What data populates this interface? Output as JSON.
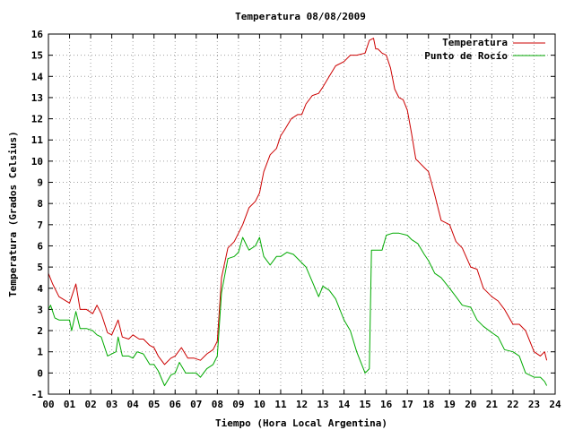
{
  "chart_data": {
    "type": "line",
    "title": "Temperatura 08/08/2009",
    "xlabel": "Tiempo (Hora Local Argentina)",
    "ylabel": "Temperatura (Grados Celsius)",
    "xlim": [
      0,
      24
    ],
    "ylim": [
      -1,
      16
    ],
    "x_ticks": [
      "00",
      "01",
      "02",
      "03",
      "04",
      "05",
      "06",
      "07",
      "08",
      "09",
      "10",
      "11",
      "12",
      "13",
      "14",
      "15",
      "16",
      "17",
      "18",
      "19",
      "20",
      "21",
      "22",
      "23",
      "24"
    ],
    "y_ticks": [
      "-1",
      "0",
      "1",
      "2",
      "3",
      "4",
      "5",
      "6",
      "7",
      "8",
      "9",
      "10",
      "11",
      "12",
      "13",
      "14",
      "15",
      "16"
    ],
    "grid": true,
    "legend_position": "top-right",
    "series": [
      {
        "name": "Temperatura",
        "color": "#cc0000",
        "x": [
          0,
          0.2,
          0.5,
          1.0,
          1.1,
          1.3,
          1.5,
          1.8,
          2.1,
          2.3,
          2.5,
          2.8,
          3.0,
          3.3,
          3.5,
          3.8,
          4.0,
          4.3,
          4.5,
          4.8,
          5.0,
          5.2,
          5.5,
          5.8,
          6.0,
          6.3,
          6.6,
          6.9,
          7.2,
          7.5,
          7.8,
          8.0,
          8.2,
          8.5,
          8.8,
          9.0,
          9.2,
          9.5,
          9.8,
          10.0,
          10.2,
          10.5,
          10.8,
          11.0,
          11.2,
          11.5,
          11.8,
          12.0,
          12.2,
          12.5,
          12.8,
          13.0,
          13.3,
          13.6,
          14.0,
          14.3,
          14.6,
          15.0,
          15.2,
          15.4,
          15.5,
          15.6,
          15.8,
          16.0,
          16.2,
          16.4,
          16.6,
          16.8,
          17.0,
          17.2,
          17.4,
          17.6,
          17.8,
          18.0,
          18.3,
          18.6,
          19.0,
          19.3,
          19.6,
          20.0,
          20.3,
          20.6,
          21.0,
          21.3,
          21.6,
          22.0,
          22.3,
          22.6,
          23.0,
          23.3,
          23.5,
          23.6
        ],
        "values": [
          4.7,
          4.2,
          3.6,
          3.3,
          3.6,
          4.2,
          3.0,
          3.0,
          2.8,
          3.2,
          2.8,
          1.9,
          1.8,
          2.5,
          1.7,
          1.6,
          1.8,
          1.6,
          1.6,
          1.3,
          1.2,
          0.8,
          0.4,
          0.7,
          0.8,
          1.2,
          0.7,
          0.7,
          0.6,
          0.9,
          1.1,
          1.5,
          4.5,
          5.9,
          6.2,
          6.6,
          7.0,
          7.8,
          8.1,
          8.5,
          9.5,
          10.3,
          10.6,
          11.2,
          11.5,
          12.0,
          12.2,
          12.2,
          12.7,
          13.1,
          13.2,
          13.5,
          14.0,
          14.5,
          14.7,
          15.0,
          15.0,
          15.1,
          15.7,
          15.8,
          15.3,
          15.3,
          15.1,
          15.0,
          14.4,
          13.4,
          13.0,
          12.9,
          12.4,
          11.3,
          10.1,
          9.9,
          9.7,
          9.5,
          8.4,
          7.2,
          7.0,
          6.2,
          5.9,
          5.0,
          4.9,
          4.0,
          3.6,
          3.4,
          3.0,
          2.3,
          2.3,
          2.0,
          1.0,
          0.8,
          1.0,
          0.6
        ]
      },
      {
        "name": "Punto de Rocío",
        "color": "#00aa00",
        "x": [
          0,
          0.1,
          0.3,
          0.5,
          1.0,
          1.1,
          1.3,
          1.5,
          1.8,
          2.1,
          2.3,
          2.5,
          2.8,
          3.0,
          3.2,
          3.3,
          3.5,
          3.8,
          4.0,
          4.2,
          4.5,
          4.8,
          5.0,
          5.2,
          5.5,
          5.8,
          6.0,
          6.2,
          6.5,
          7.0,
          7.2,
          7.5,
          7.8,
          8.0,
          8.2,
          8.5,
          8.8,
          9.0,
          9.2,
          9.5,
          9.8,
          10.0,
          10.2,
          10.5,
          10.8,
          11.0,
          11.3,
          11.6,
          12.0,
          12.2,
          12.5,
          12.8,
          13.0,
          13.3,
          13.6,
          14.0,
          14.3,
          14.6,
          15.0,
          15.1,
          15.2,
          15.3,
          15.5,
          15.8,
          16.0,
          16.3,
          16.6,
          17.0,
          17.2,
          17.5,
          17.8,
          18.0,
          18.3,
          18.6,
          19.0,
          19.3,
          19.6,
          20.0,
          20.3,
          20.6,
          21.0,
          21.3,
          21.6,
          22.0,
          22.3,
          22.6,
          23.0,
          23.3,
          23.5,
          23.6
        ],
        "values": [
          3.0,
          3.2,
          2.6,
          2.5,
          2.5,
          2.0,
          2.9,
          2.1,
          2.1,
          2.0,
          1.8,
          1.7,
          0.8,
          0.9,
          1.0,
          1.7,
          0.8,
          0.8,
          0.7,
          1.0,
          0.9,
          0.4,
          0.4,
          0.1,
          -0.6,
          -0.1,
          0.0,
          0.5,
          0.0,
          0.0,
          -0.2,
          0.2,
          0.4,
          0.8,
          3.8,
          5.4,
          5.5,
          5.7,
          6.4,
          5.8,
          6.0,
          6.4,
          5.5,
          5.1,
          5.5,
          5.5,
          5.7,
          5.6,
          5.2,
          5.0,
          4.3,
          3.6,
          4.1,
          3.9,
          3.5,
          2.5,
          2.0,
          1.0,
          0.0,
          0.1,
          0.2,
          5.8,
          5.8,
          5.8,
          6.5,
          6.6,
          6.6,
          6.5,
          6.3,
          6.1,
          5.6,
          5.3,
          4.7,
          4.5,
          4.0,
          3.6,
          3.2,
          3.1,
          2.5,
          2.2,
          1.9,
          1.7,
          1.1,
          1.0,
          0.8,
          0.0,
          -0.2,
          -0.2,
          -0.4,
          -0.6
        ]
      }
    ]
  }
}
